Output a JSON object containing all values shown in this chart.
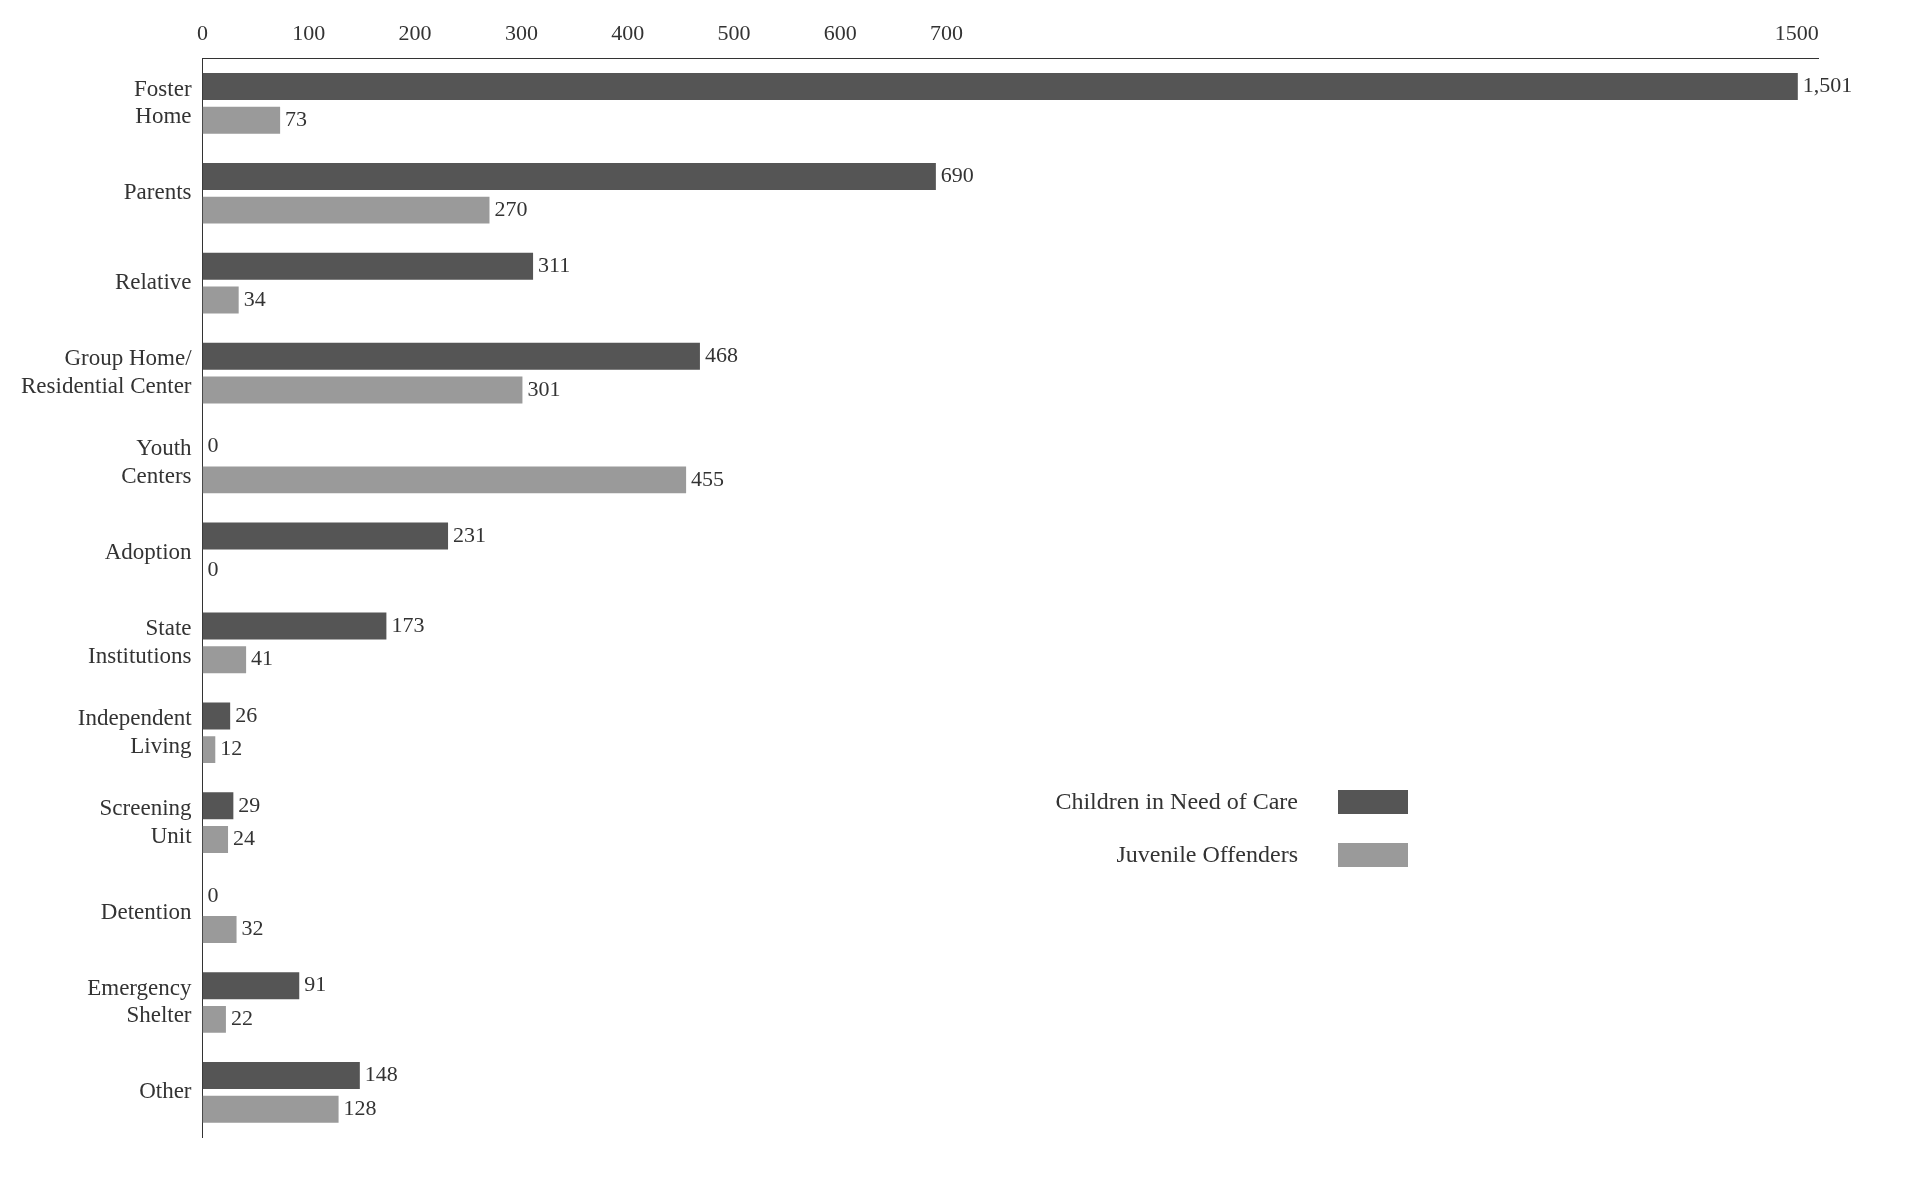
{
  "chart_data": {
    "type": "bar",
    "orientation": "horizontal",
    "categories": [
      "Foster Home",
      "Parents",
      "Relative",
      "Group Home/ Residential Center",
      "Youth Centers",
      "Adoption",
      "State Institutions",
      "Independent Living",
      "Screening Unit",
      "Detention",
      "Emergency Shelter",
      "Other"
    ],
    "series": [
      {
        "name": "Children in Need of Care",
        "color": "#555555",
        "values": [
          1501,
          690,
          311,
          468,
          0,
          231,
          173,
          26,
          29,
          0,
          91,
          148
        ],
        "value_labels": [
          "1,501",
          "690",
          "311",
          "468",
          "0",
          "231",
          "173",
          "26",
          "29",
          "0",
          "91",
          "148"
        ]
      },
      {
        "name": "Juvenile Offenders",
        "color": "#9a9a9a",
        "values": [
          73,
          270,
          34,
          301,
          455,
          0,
          41,
          12,
          24,
          32,
          22,
          128
        ],
        "value_labels": [
          "73",
          "270",
          "34",
          "301",
          "455",
          "0",
          "41",
          "12",
          "24",
          "32",
          "22",
          "128"
        ]
      }
    ],
    "xlim": [
      0,
      1520
    ],
    "xticks": [
      0,
      100,
      200,
      300,
      400,
      500,
      600,
      700,
      1500
    ],
    "legend": "bottom right",
    "grid": false
  }
}
